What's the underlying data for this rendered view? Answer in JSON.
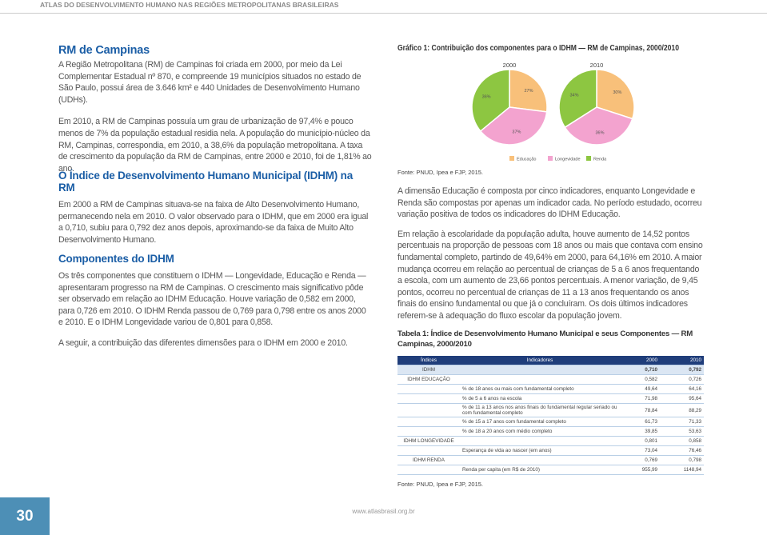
{
  "header": {
    "title": "ATLAS DO DESENVOLVIMENTO HUMANO NAS REGIÕES METROPOLITANAS BRASILEIRAS"
  },
  "section1": {
    "heading": "RM de Campinas",
    "paragraphs": [
      "A Região Metropolitana (RM) de Campinas foi criada em 2000, por meio da Lei Complementar Estadual nº 870, e compreende 19 municípios situados no estado de São Paulo, possui área de 3.646 km² e 440 Unidades de Desenvolvimento Humano (UDHs).",
      "Em 2010, a RM de Campinas possuía um grau de urbanização de 97,4% e pouco menos de 7% da população estadual residia nela. A população do município-núcleo da RM, Campinas, correspondia, em 2010, a 38,6% da população metropolitana. A taxa de crescimento da população da RM de Campinas, entre 2000 e 2010, foi de 1,81% ao ano."
    ]
  },
  "section2": {
    "heading": "O Índice de Desenvolvimento Humano Municipal (IDHM) na RM",
    "paragraphs": [
      "Em 2000 a RM de Campinas situava-se na faixa de Alto Desenvolvimento Humano, permanecendo nela em 2010. O valor observado para o IDHM, que em 2000 era igual a 0,710, subiu para 0,792 dez anos depois, aproximando-se da faixa de Muito Alto Desenvolvimento Humano."
    ]
  },
  "section3": {
    "heading": "Componentes do IDHM",
    "paragraphs": [
      "Os três componentes que constituem o IDHM — Longevidade, Educação e Renda — apresentaram progresso na RM de Campinas. O crescimento mais significativo pôde ser observado em relação ao IDHM Educação. Houve variação de 0,582 em 2000, para 0,726 em 2010. O IDHM Renda passou de 0,769 para 0,798 entre os anos 2000 e 2010. E o IDHM Longevidade variou de 0,801 para 0,858.",
      "A seguir, a contribuição das diferentes dimensões para o IDHM em 2000 e 2010."
    ]
  },
  "chart": {
    "type": "pie",
    "title": "Gráfico 1: Contribuição dos componentes para o IDHM — RM de Campinas, 2000/2010",
    "legend": [
      "Educação",
      "Longevidade",
      "Renda"
    ],
    "colors": [
      "#f8c07a",
      "#f3a3cf",
      "#8dc641"
    ],
    "pies": [
      {
        "label": "2000",
        "values": [
          27,
          37,
          36
        ],
        "value_labels": [
          "27%",
          "37%",
          "36%"
        ]
      },
      {
        "label": "2010",
        "values": [
          30,
          36,
          34
        ],
        "value_labels": [
          "30%",
          "36%",
          "34%"
        ]
      }
    ],
    "source": "Fonte: PNUD, Ipea e FJP, 2015."
  },
  "right_paragraphs": [
    "A dimensão Educação é composta por cinco indicadores, enquanto Longevidade e Renda são compostas por apenas um indicador cada. No período estudado, ocorreu variação positiva de todos os indicadores do IDHM Educação.",
    "Em relação à escolaridade da população adulta, houve aumento de 14,52 pontos percentuais na proporção de pessoas com 18 anos ou mais que contava com ensino fundamental completo, partindo de 49,64% em 2000, para 64,16% em 2010. A maior mudança ocorreu em relação ao percentual de crianças de 5 a 6 anos frequentando a escola, com um aumento de 23,66 pontos percentuais. A menor variação, de 9,45 pontos, ocorreu no percentual de crianças de 11 a 13 anos frequentando os anos finais do ensino fundamental ou que já o concluíram. Os dois últimos indicadores referem-se à adequação do fluxo escolar da população jovem."
  ],
  "table": {
    "title": "Tabela 1: Índice de Desenvolvimento Humano Municipal e seus Componentes — RM Campinas, 2000/2010",
    "columns": [
      "Índices",
      "Indicadores",
      "2000",
      "2010"
    ],
    "rows": [
      [
        "IDHM",
        null,
        "0,710",
        "0,792"
      ],
      [
        "IDHM EDUCAÇÃO",
        null,
        "0,582",
        "0,726"
      ],
      [
        null,
        "% de 18 anos ou mais com fundamental completo",
        "49,64",
        "64,16"
      ],
      [
        null,
        "% de 5 a 6 anos na escola",
        "71,98",
        "95,64"
      ],
      [
        null,
        "% de 11 a 13 anos nos anos finais do fundamental regular seriado ou com fundamental completo",
        "78,84",
        "88,29"
      ],
      [
        null,
        "% de 15 a 17 anos com fundamental completo",
        "61,73",
        "71,33"
      ],
      [
        null,
        "% de 18 a 20 anos com médio completo",
        "39,85",
        "53,63"
      ],
      [
        "IDHM LONGEVIDADE",
        null,
        "0,801",
        "0,858"
      ],
      [
        null,
        "Esperança de vida ao nascer (em anos)",
        "73,04",
        "76,46"
      ],
      [
        "IDHM RENDA",
        null,
        "0,769",
        "0,798"
      ],
      [
        null,
        "Renda per capita (em R$ de 2010)",
        "955,99",
        "1148,94"
      ]
    ],
    "source": "Fonte: PNUD, Ipea e FJP, 2015."
  },
  "footer": {
    "page": "30",
    "url": "www.atlasbrasil.org.br"
  }
}
